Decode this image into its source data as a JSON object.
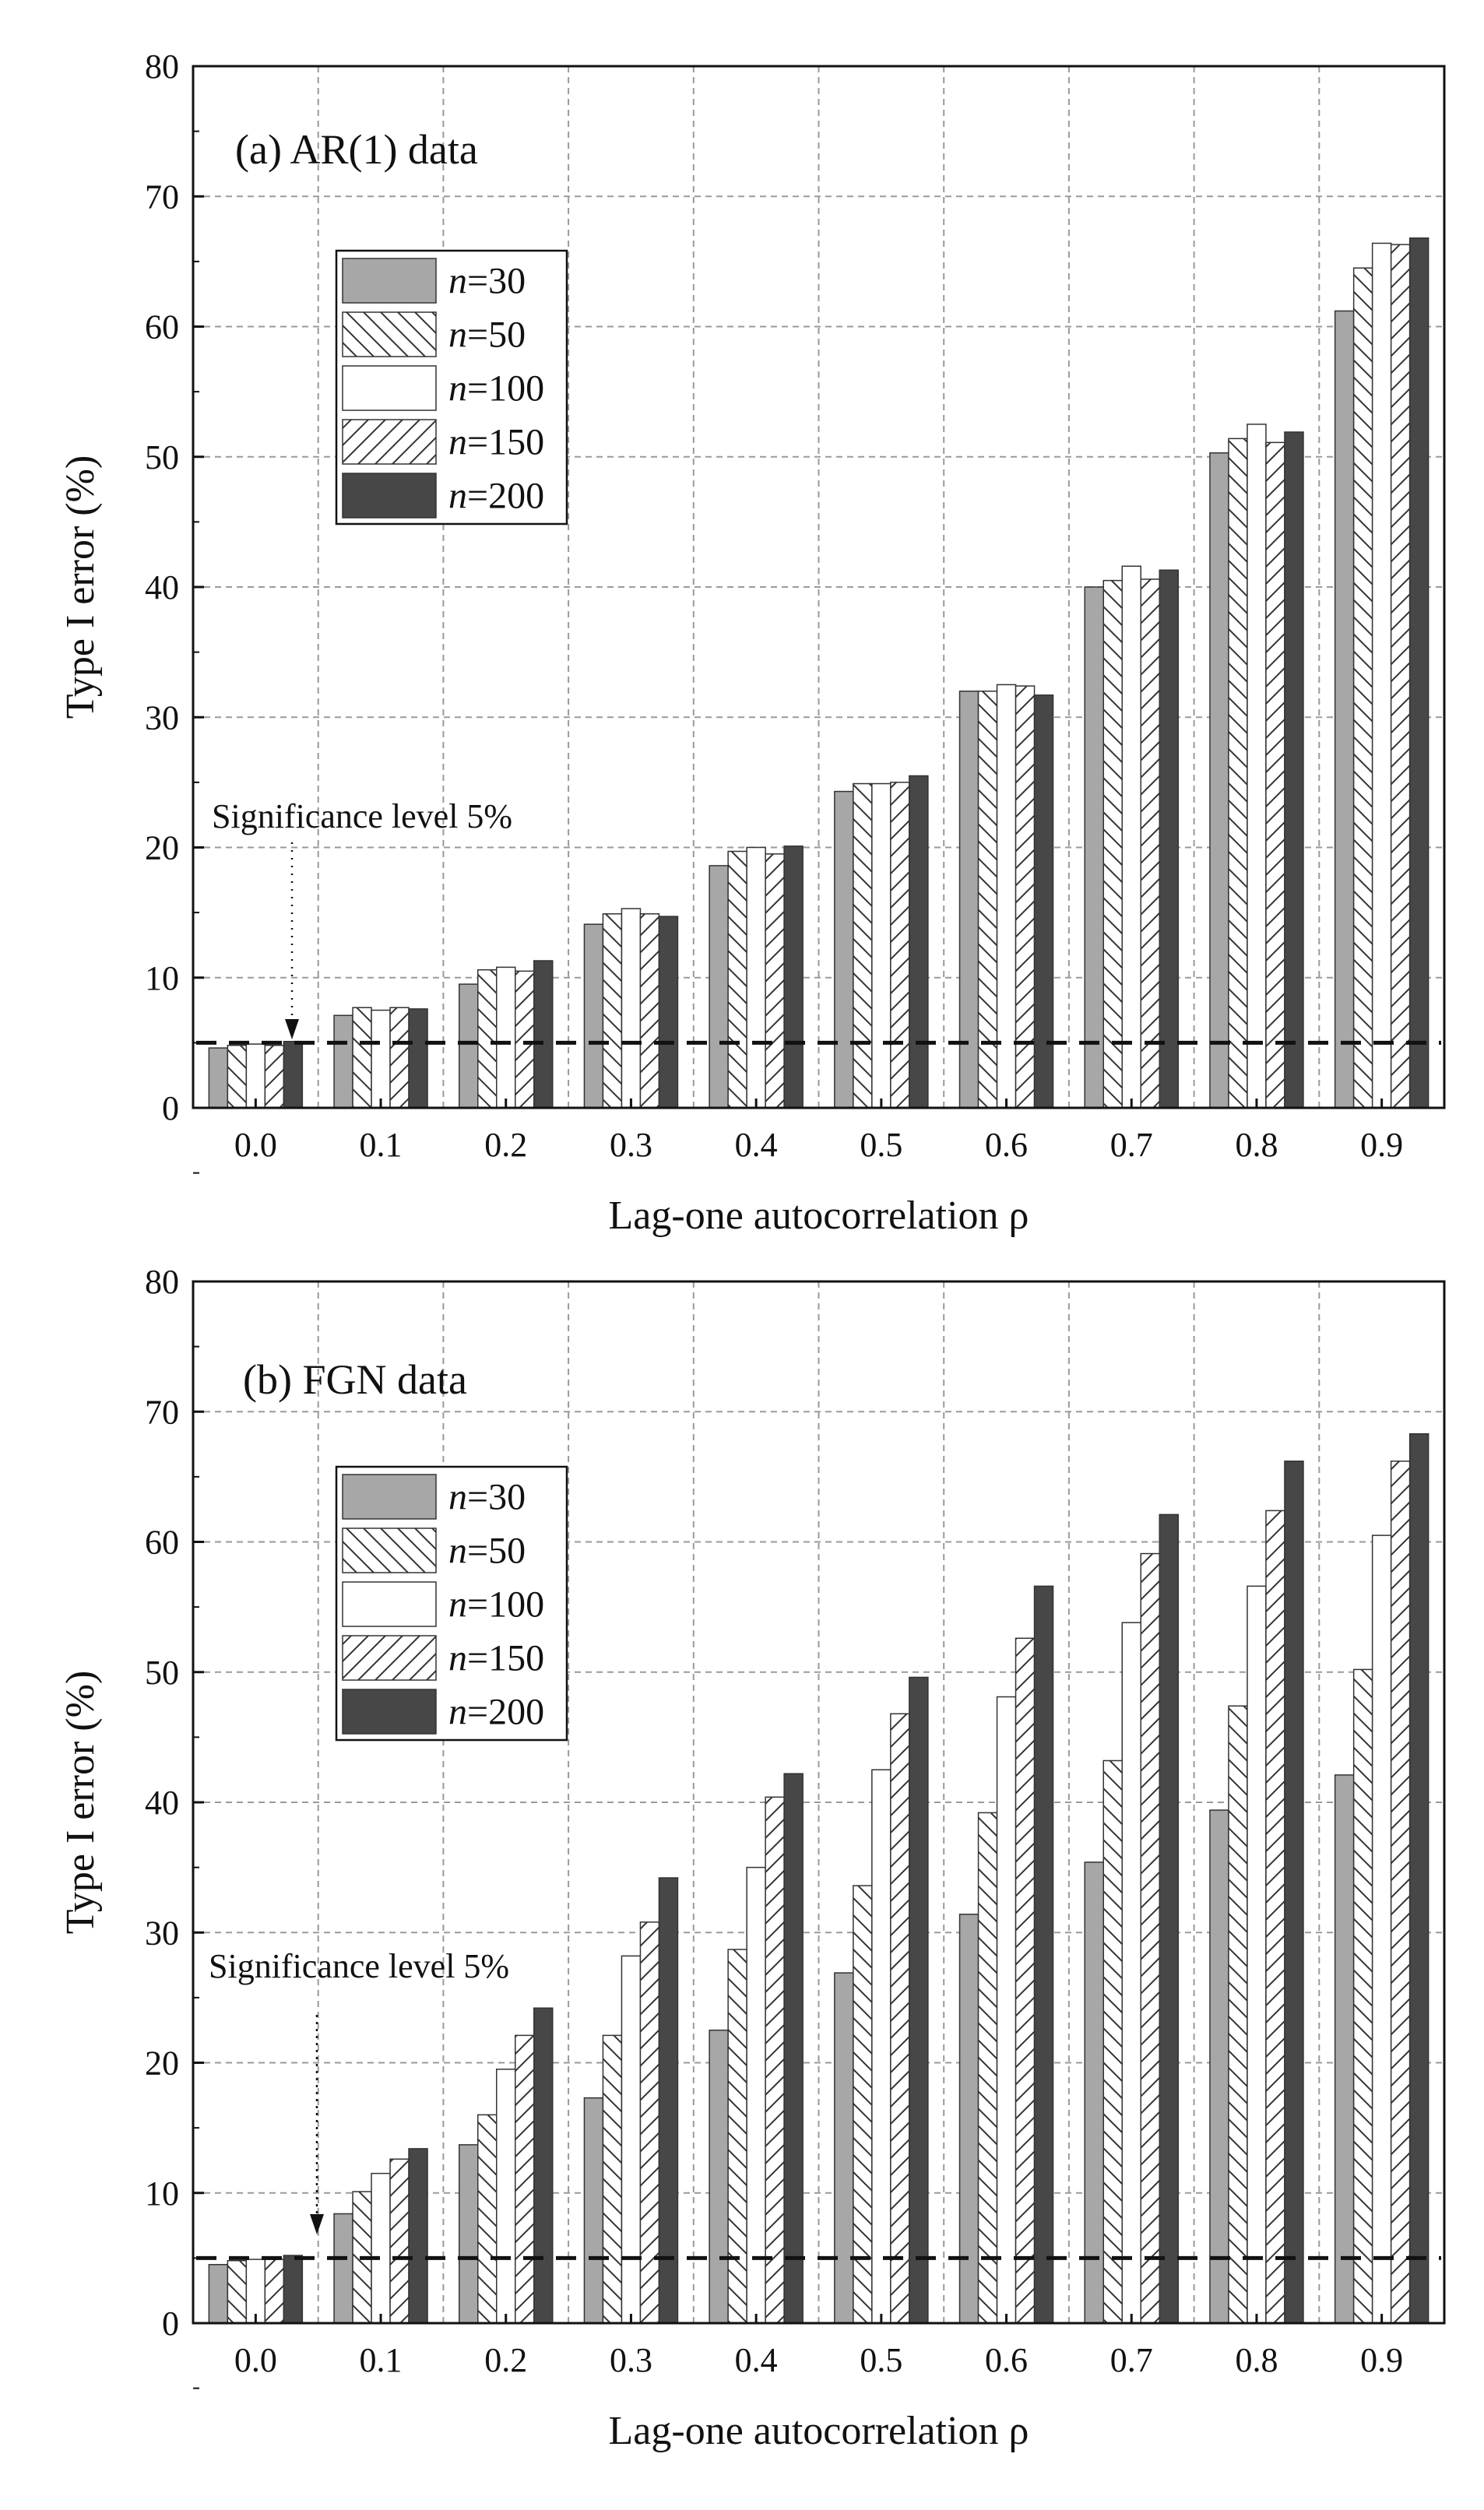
{
  "chart_data": [
    {
      "type": "bar",
      "title": "(a) AR(1) data",
      "xlabel": "Lag-one autocorrelation ρ",
      "ylabel": "Type I error (%)",
      "ylim": [
        0,
        80
      ],
      "yticks": [
        "0",
        "10",
        "20",
        "30",
        "40",
        "50",
        "60",
        "70",
        "80"
      ],
      "grid": true,
      "legend_position": "upper-left",
      "categories": [
        "0.0",
        "0.1",
        "0.2",
        "0.3",
        "0.4",
        "0.5",
        "0.6",
        "0.7",
        "0.8",
        "0.9"
      ],
      "series": [
        {
          "name": "n=30",
          "n_italic": "n",
          "n_rest": "=30",
          "values": [
            4.6,
            7.1,
            9.5,
            14.1,
            18.6,
            24.3,
            32.0,
            40.0,
            50.3,
            61.2
          ]
        },
        {
          "name": "n=50",
          "n_italic": "n",
          "n_rest": "=50",
          "values": [
            4.8,
            7.7,
            10.6,
            14.9,
            19.7,
            24.9,
            32.0,
            40.5,
            51.4,
            64.5
          ]
        },
        {
          "name": "n=100",
          "n_italic": "n",
          "n_rest": "=100",
          "values": [
            4.9,
            7.5,
            10.8,
            15.3,
            20.0,
            24.9,
            32.5,
            41.6,
            52.5,
            66.4
          ]
        },
        {
          "name": "n=150",
          "n_italic": "n",
          "n_rest": "=150",
          "values": [
            4.8,
            7.7,
            10.5,
            14.9,
            19.5,
            25.0,
            32.4,
            40.6,
            51.1,
            66.3
          ]
        },
        {
          "name": "n=200",
          "n_italic": "n",
          "n_rest": "=200",
          "values": [
            5.1,
            7.6,
            11.3,
            14.7,
            20.1,
            25.5,
            31.7,
            41.3,
            51.9,
            66.8
          ]
        }
      ],
      "reference_line": {
        "value": 5,
        "label": "Significance level 5%"
      }
    },
    {
      "type": "bar",
      "title": "(b) FGN data",
      "xlabel": "Lag-one autocorrelation ρ",
      "ylabel": "Type I error (%)",
      "ylim": [
        0,
        80
      ],
      "yticks": [
        "0",
        "10",
        "20",
        "30",
        "40",
        "50",
        "60",
        "70",
        "80"
      ],
      "grid": true,
      "legend_position": "upper-left",
      "categories": [
        "0.0",
        "0.1",
        "0.2",
        "0.3",
        "0.4",
        "0.5",
        "0.6",
        "0.7",
        "0.8",
        "0.9"
      ],
      "series": [
        {
          "name": "n=30",
          "n_italic": "n",
          "n_rest": "=30",
          "values": [
            4.5,
            8.4,
            13.7,
            17.3,
            22.5,
            26.9,
            31.4,
            35.4,
            39.4,
            42.1
          ]
        },
        {
          "name": "n=50",
          "n_italic": "n",
          "n_rest": "=50",
          "values": [
            4.8,
            10.1,
            16.0,
            22.1,
            28.7,
            33.6,
            39.2,
            43.2,
            47.4,
            50.2
          ]
        },
        {
          "name": "n=100",
          "n_italic": "n",
          "n_rest": "=100",
          "values": [
            4.9,
            11.5,
            19.5,
            28.2,
            35.0,
            42.5,
            48.1,
            53.8,
            56.6,
            60.5
          ]
        },
        {
          "name": "n=150",
          "n_italic": "n",
          "n_rest": "=150",
          "values": [
            4.9,
            12.6,
            22.1,
            30.8,
            40.4,
            46.8,
            52.6,
            59.1,
            62.4,
            66.2
          ]
        },
        {
          "name": "n=200",
          "n_italic": "n",
          "n_rest": "=200",
          "values": [
            5.2,
            13.4,
            24.2,
            34.2,
            42.2,
            49.6,
            56.6,
            62.1,
            66.2,
            68.3
          ]
        }
      ],
      "reference_line": {
        "value": 5,
        "label": "Significance level 5%"
      }
    }
  ],
  "colors": {
    "n30_fill": "#a7a7a7",
    "n200_fill": "#474747",
    "hatch_stroke": "#333333",
    "frame": "#111111",
    "grid": "#9a9a9a",
    "reference_line": "#111111"
  }
}
